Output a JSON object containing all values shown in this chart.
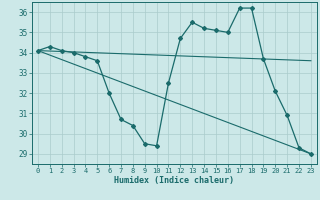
{
  "title": "",
  "xlabel": "Humidex (Indice chaleur)",
  "ylabel": "",
  "xlim": [
    -0.5,
    23.5
  ],
  "ylim": [
    28.5,
    36.5
  ],
  "yticks": [
    29,
    30,
    31,
    32,
    33,
    34,
    35,
    36
  ],
  "xticks": [
    0,
    1,
    2,
    3,
    4,
    5,
    6,
    7,
    8,
    9,
    10,
    11,
    12,
    13,
    14,
    15,
    16,
    17,
    18,
    19,
    20,
    21,
    22,
    23
  ],
  "background_color": "#cce8e8",
  "line_color": "#1a6b6b",
  "grid_color": "#aacccc",
  "series": [
    {
      "x": [
        0,
        1,
        2,
        3,
        4,
        5,
        6,
        7,
        8,
        9,
        10,
        11,
        12,
        13,
        14,
        15,
        16,
        17,
        18,
        19,
        20,
        21,
        22,
        23
      ],
      "y": [
        34.1,
        34.3,
        34.1,
        34.0,
        33.8,
        33.6,
        32.0,
        30.7,
        30.4,
        29.5,
        29.4,
        32.5,
        34.7,
        35.5,
        35.2,
        35.1,
        35.0,
        36.2,
        36.2,
        33.7,
        32.1,
        30.9,
        29.3,
        29.0
      ],
      "marker": "D",
      "markersize": 2.0,
      "linewidth": 0.9
    },
    {
      "x": [
        0,
        23
      ],
      "y": [
        34.1,
        33.6
      ],
      "marker": null,
      "markersize": 0,
      "linewidth": 0.8
    },
    {
      "x": [
        0,
        23
      ],
      "y": [
        34.1,
        29.0
      ],
      "marker": null,
      "markersize": 0,
      "linewidth": 0.8
    }
  ]
}
